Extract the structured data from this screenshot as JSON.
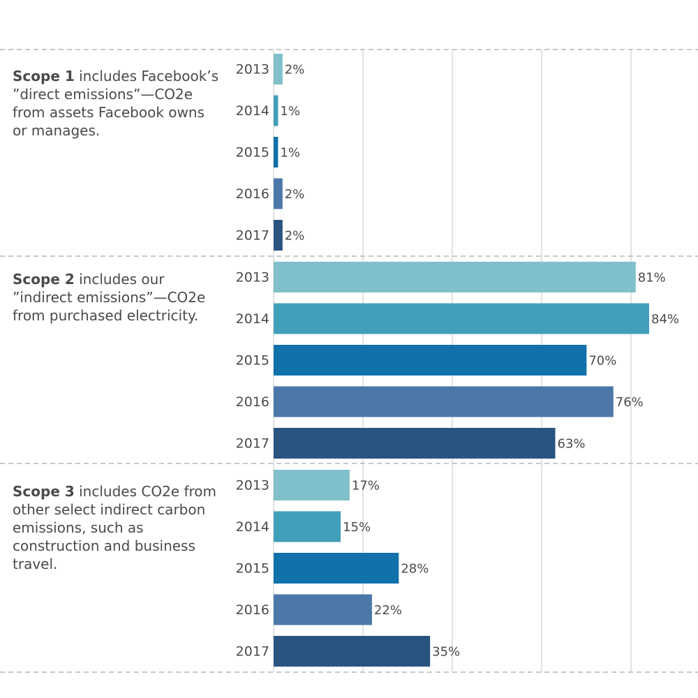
{
  "colors": {
    "year_2013": "#7fc0cb",
    "year_2014": "#419fba",
    "year_2015": "#1171ab",
    "year_2016": "#4c78a9",
    "year_2017": "#295480",
    "grid": "#d9d9d9",
    "divider": "#b5b5b5",
    "text": "#4a4a4a"
  },
  "scopes": [
    {
      "name": "Scope 1",
      "description": "includes Facebook’s ”direct emissions”—CO2e from assets Facebook owns or manages."
    },
    {
      "name": "Scope 2",
      "description": "includes our ”indirect emissions”—CO2e from purchased electricity."
    },
    {
      "name": "Scope 3",
      "description": "includes CO2e from other select indirect carbon emissions, such as construction and business travel."
    }
  ],
  "chart_data": {
    "type": "bar",
    "orientation": "horizontal",
    "title": "",
    "xlabel": "",
    "ylabel": "",
    "xlim": [
      0,
      85
    ],
    "grid": true,
    "categories": [
      "2013",
      "2014",
      "2015",
      "2016",
      "2017"
    ],
    "value_suffix": "%",
    "series": [
      {
        "name": "Scope 1",
        "values": [
          2,
          1,
          1,
          2,
          2
        ]
      },
      {
        "name": "Scope 2",
        "values": [
          81,
          84,
          70,
          76,
          63
        ]
      },
      {
        "name": "Scope 3",
        "values": [
          17,
          15,
          28,
          22,
          35
        ]
      }
    ]
  }
}
